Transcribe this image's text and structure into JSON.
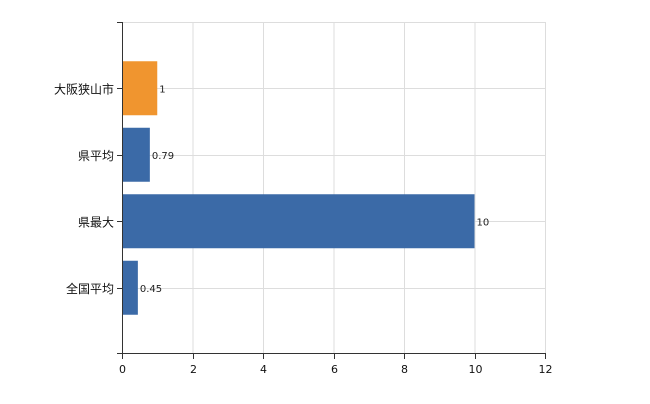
{
  "chart_data": {
    "type": "bar",
    "orientation": "horizontal",
    "categories": [
      "大阪狭山市",
      "県平均",
      "県最大",
      "全国平均"
    ],
    "values": [
      1,
      0.79,
      10,
      0.45
    ],
    "data_labels": [
      "1",
      "0.79",
      "10",
      "0.45"
    ],
    "bar_colors": [
      "#f0952f",
      "#3b6aa7",
      "#3b6aa7",
      "#3b6aa7"
    ],
    "xlim": [
      0,
      12
    ],
    "x_ticks": [
      0,
      2,
      4,
      6,
      8,
      10,
      12
    ],
    "x_tick_labels": [
      "0",
      "2",
      "4",
      "6",
      "8",
      "10",
      "12"
    ],
    "grid": true,
    "title": "",
    "xlabel": "",
    "ylabel": ""
  },
  "colors": {
    "highlight": "#f0952f",
    "bar": "#3b6aa7",
    "grid": "#dddddd",
    "axis": "#333333"
  }
}
